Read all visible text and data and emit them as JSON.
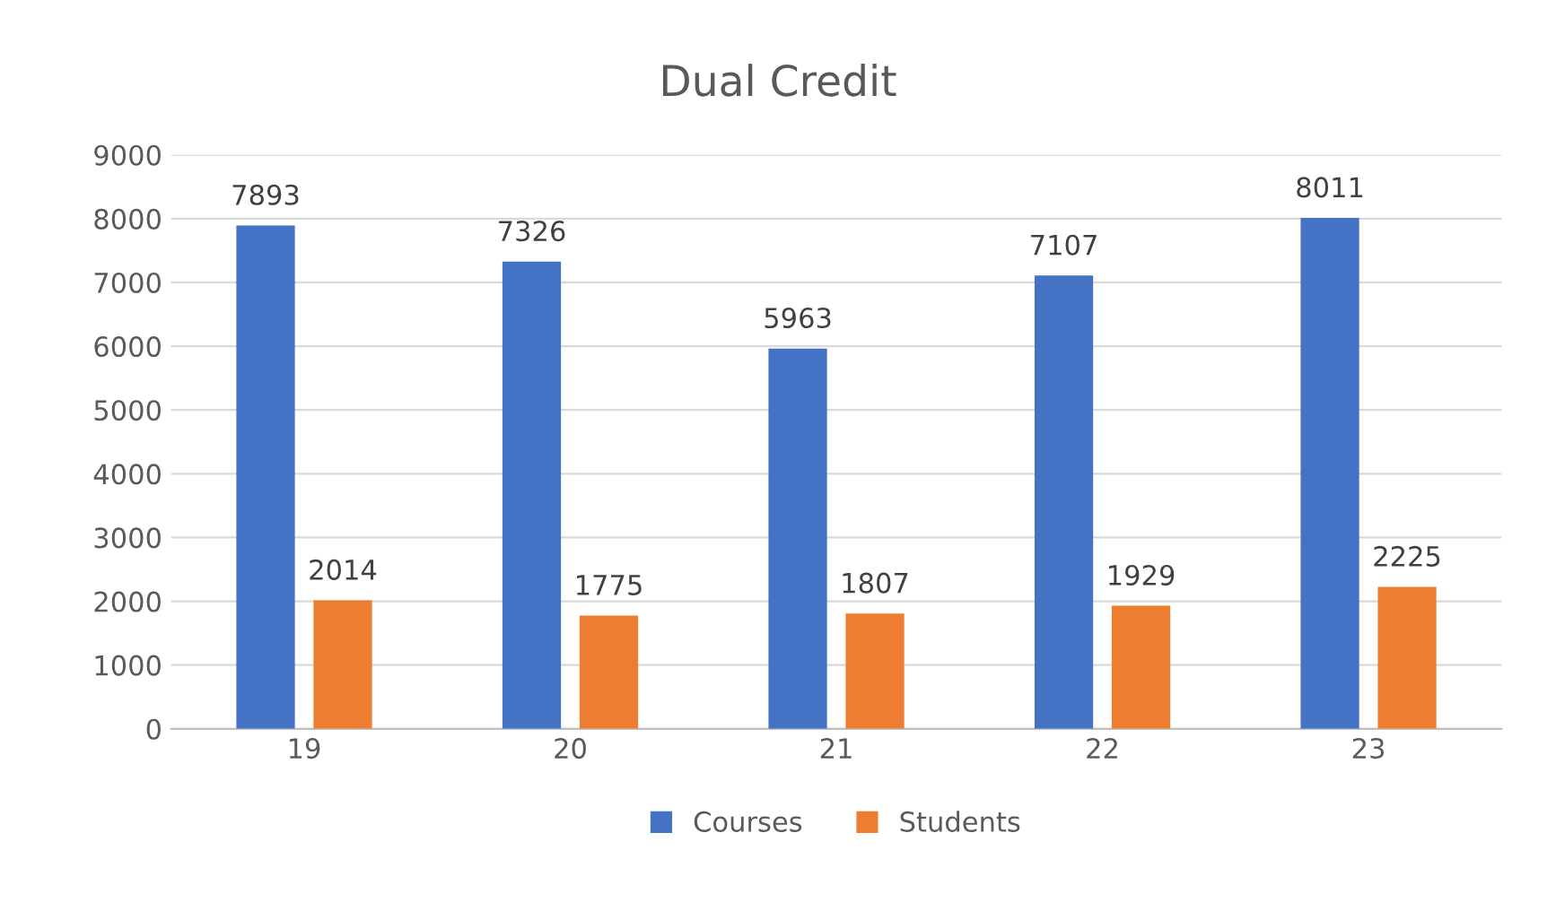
{
  "chart_data": {
    "type": "bar",
    "title": "Dual Credit",
    "categories": [
      "19",
      "20",
      "21",
      "22",
      "23"
    ],
    "series": [
      {
        "name": "Courses",
        "color": "#4472c4",
        "values": [
          7893,
          7326,
          5963,
          7107,
          8011
        ]
      },
      {
        "name": "Students",
        "color": "#ed7d31",
        "values": [
          2014,
          1775,
          1807,
          1929,
          2225
        ]
      }
    ],
    "ylim": [
      0,
      9000
    ],
    "yticks": [
      0,
      1000,
      2000,
      3000,
      4000,
      5000,
      6000,
      7000,
      8000,
      9000
    ],
    "grid": "y",
    "legend": "bottom",
    "data_labels": true
  }
}
